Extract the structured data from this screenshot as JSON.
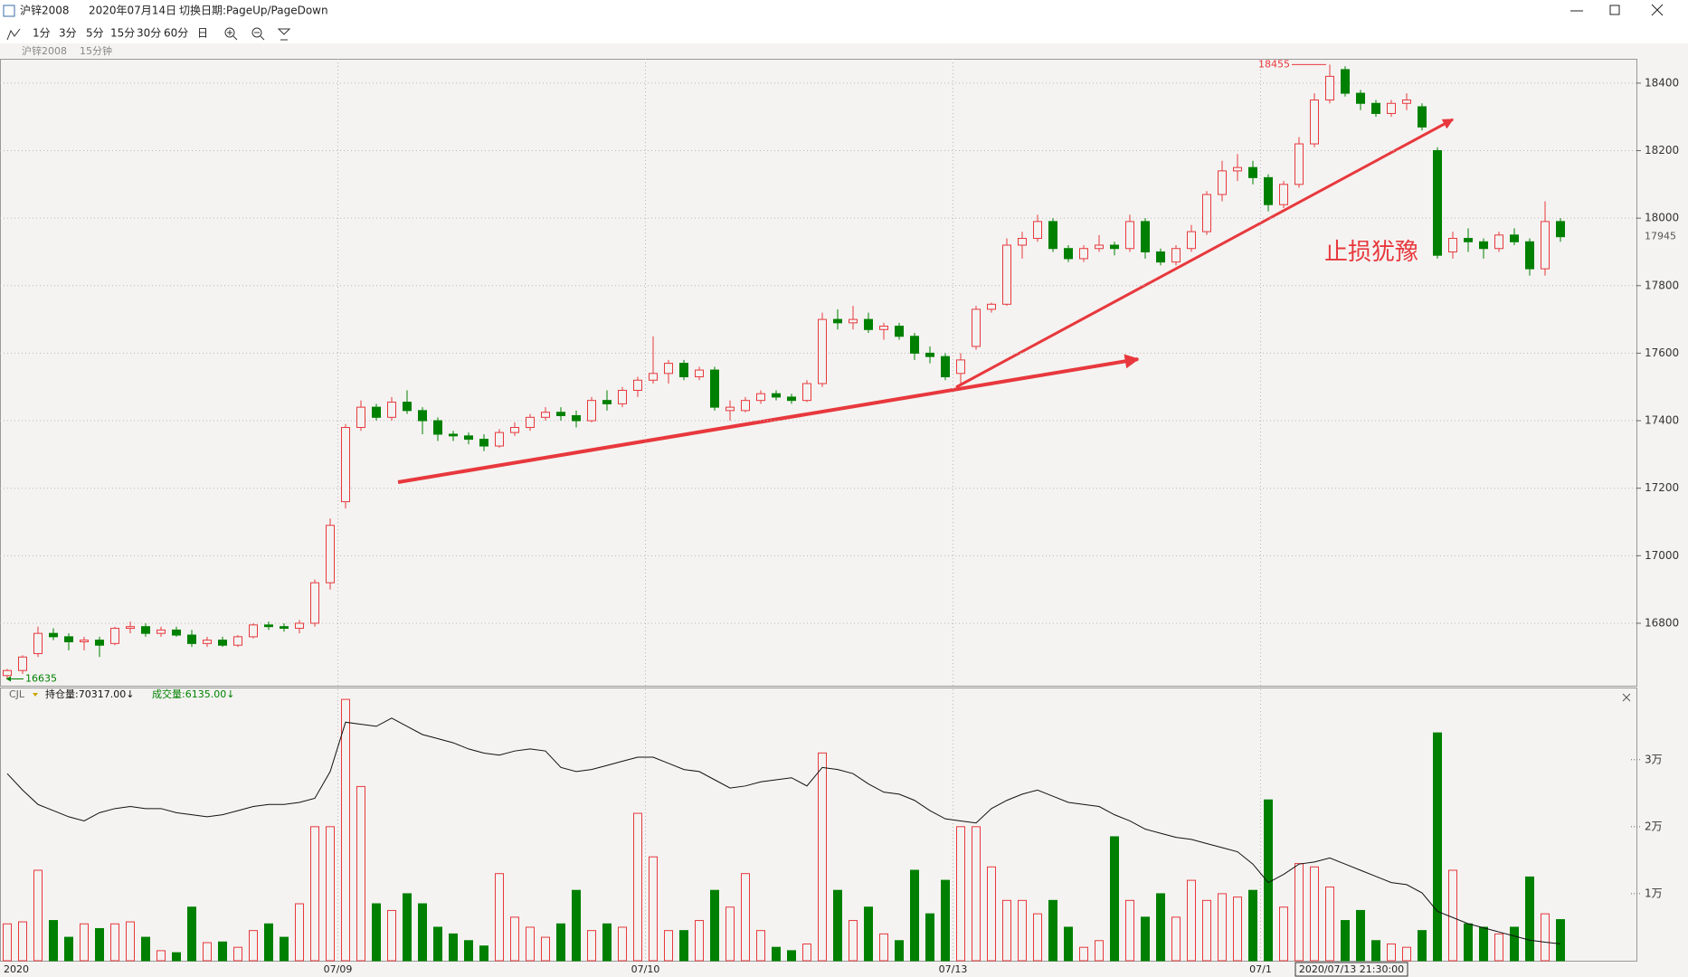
{
  "window": {
    "title": "沪锌2008",
    "date": "2020年07月14日",
    "hint": "切换日期:PageUp/PageDown",
    "periods": [
      "1分",
      "3分",
      "5分",
      "15分",
      "30分",
      "60分",
      "日"
    ]
  },
  "chart_data": {
    "type": "candlestick",
    "subtitle": "沪锌2008",
    "period": "15分钟",
    "categories": [
      "2020",
      null,
      null,
      null,
      null,
      null,
      null,
      null,
      null,
      null,
      null,
      null,
      null,
      null,
      null,
      null,
      null,
      null,
      null,
      null,
      null,
      null,
      "07/09",
      null,
      null,
      null,
      null,
      null,
      null,
      null,
      null,
      null,
      null,
      null,
      null,
      null,
      null,
      null,
      null,
      null,
      null,
      null,
      "07/10",
      null,
      null,
      null,
      null,
      null,
      null,
      null,
      null,
      null,
      null,
      null,
      null,
      null,
      null,
      null,
      null,
      null,
      null,
      null,
      "07/13",
      null,
      null,
      null,
      null,
      null,
      null,
      null,
      null,
      null,
      null,
      null,
      null,
      null,
      null,
      null,
      null,
      null,
      null,
      null,
      "07/1",
      null,
      null,
      null,
      null,
      null,
      null,
      null,
      null,
      null,
      null,
      null,
      null,
      null,
      null,
      null,
      null,
      null,
      null,
      null
    ],
    "ohlc": [
      [
        16645,
        16665,
        16635,
        16660
      ],
      [
        16660,
        16705,
        16650,
        16700
      ],
      [
        16710,
        16790,
        16700,
        16770
      ],
      [
        16770,
        16785,
        16750,
        16760
      ],
      [
        16760,
        16770,
        16720,
        16745
      ],
      [
        16745,
        16760,
        16720,
        16750
      ],
      [
        16750,
        16760,
        16700,
        16735
      ],
      [
        16740,
        16790,
        16735,
        16785
      ],
      [
        16785,
        16805,
        16770,
        16790
      ],
      [
        16790,
        16800,
        16760,
        16770
      ],
      [
        16770,
        16790,
        16760,
        16780
      ],
      [
        16780,
        16790,
        16760,
        16765
      ],
      [
        16765,
        16780,
        16730,
        16740
      ],
      [
        16740,
        16760,
        16730,
        16750
      ],
      [
        16750,
        16760,
        16730,
        16735
      ],
      [
        16735,
        16765,
        16730,
        16760
      ],
      [
        16760,
        16800,
        16755,
        16795
      ],
      [
        16795,
        16805,
        16780,
        16790
      ],
      [
        16790,
        16800,
        16775,
        16785
      ],
      [
        16785,
        16810,
        16770,
        16800
      ],
      [
        16800,
        16930,
        16790,
        16920
      ],
      [
        16920,
        17110,
        16900,
        17090
      ],
      [
        17160,
        17390,
        17140,
        17380
      ],
      [
        17380,
        17460,
        17370,
        17440
      ],
      [
        17440,
        17450,
        17400,
        17410
      ],
      [
        17410,
        17470,
        17400,
        17455
      ],
      [
        17455,
        17490,
        17420,
        17430
      ],
      [
        17430,
        17440,
        17360,
        17400
      ],
      [
        17400,
        17410,
        17340,
        17360
      ],
      [
        17360,
        17370,
        17340,
        17355
      ],
      [
        17355,
        17365,
        17330,
        17345
      ],
      [
        17345,
        17360,
        17310,
        17325
      ],
      [
        17325,
        17375,
        17320,
        17365
      ],
      [
        17365,
        17395,
        17355,
        17380
      ],
      [
        17380,
        17420,
        17370,
        17410
      ],
      [
        17410,
        17440,
        17400,
        17425
      ],
      [
        17425,
        17440,
        17400,
        17415
      ],
      [
        17415,
        17430,
        17380,
        17400
      ],
      [
        17400,
        17470,
        17395,
        17460
      ],
      [
        17460,
        17490,
        17430,
        17450
      ],
      [
        17450,
        17500,
        17440,
        17490
      ],
      [
        17490,
        17530,
        17470,
        17520
      ],
      [
        17520,
        17650,
        17510,
        17540
      ],
      [
        17540,
        17580,
        17510,
        17570
      ],
      [
        17570,
        17580,
        17520,
        17530
      ],
      [
        17530,
        17560,
        17520,
        17550
      ],
      [
        17550,
        17560,
        17430,
        17440
      ],
      [
        17430,
        17460,
        17400,
        17440
      ],
      [
        17430,
        17470,
        17425,
        17460
      ],
      [
        17460,
        17490,
        17450,
        17480
      ],
      [
        17480,
        17490,
        17460,
        17470
      ],
      [
        17470,
        17480,
        17450,
        17460
      ],
      [
        17460,
        17520,
        17455,
        17510
      ],
      [
        17510,
        17720,
        17500,
        17700
      ],
      [
        17700,
        17730,
        17670,
        17690
      ],
      [
        17690,
        17740,
        17670,
        17700
      ],
      [
        17700,
        17720,
        17660,
        17670
      ],
      [
        17670,
        17690,
        17640,
        17680
      ],
      [
        17680,
        17690,
        17640,
        17650
      ],
      [
        17650,
        17660,
        17580,
        17600
      ],
      [
        17600,
        17620,
        17570,
        17590
      ],
      [
        17590,
        17600,
        17520,
        17530
      ],
      [
        17540,
        17600,
        17510,
        17580
      ],
      [
        17620,
        17740,
        17610,
        17730
      ],
      [
        17730,
        17750,
        17720,
        17745
      ],
      [
        17745,
        17940,
        17740,
        17920
      ],
      [
        17920,
        17960,
        17880,
        17940
      ],
      [
        17940,
        18010,
        17930,
        17990
      ],
      [
        17990,
        18000,
        17900,
        17910
      ],
      [
        17910,
        17920,
        17870,
        17880
      ],
      [
        17880,
        17920,
        17870,
        17910
      ],
      [
        17910,
        17950,
        17900,
        17920
      ],
      [
        17920,
        17930,
        17890,
        17910
      ],
      [
        17910,
        18010,
        17900,
        17990
      ],
      [
        17990,
        18000,
        17880,
        17900
      ],
      [
        17900,
        17910,
        17860,
        17870
      ],
      [
        17870,
        17920,
        17860,
        17910
      ],
      [
        17910,
        17980,
        17900,
        17960
      ],
      [
        17960,
        18080,
        17950,
        18070
      ],
      [
        18070,
        18170,
        18050,
        18140
      ],
      [
        18140,
        18190,
        18110,
        18150
      ],
      [
        18150,
        18170,
        18100,
        18120
      ],
      [
        18120,
        18130,
        18020,
        18040
      ],
      [
        18040,
        18110,
        18030,
        18100
      ],
      [
        18100,
        18240,
        18090,
        18220
      ],
      [
        18220,
        18370,
        18210,
        18350
      ],
      [
        18350,
        18455,
        18340,
        18420
      ],
      [
        18440,
        18450,
        18360,
        18370
      ],
      [
        18370,
        18380,
        18320,
        18340
      ],
      [
        18340,
        18350,
        18300,
        18310
      ],
      [
        18310,
        18350,
        18300,
        18340
      ],
      [
        18340,
        18370,
        18320,
        18350
      ],
      [
        18330,
        18340,
        18260,
        18270
      ],
      [
        18200,
        18210,
        17880,
        17890
      ],
      [
        17900,
        17960,
        17880,
        17940
      ],
      [
        17940,
        17970,
        17900,
        17930
      ],
      [
        17930,
        17940,
        17880,
        17910
      ],
      [
        17910,
        17960,
        17900,
        17950
      ],
      [
        17950,
        17970,
        17920,
        17930
      ],
      [
        17930,
        17940,
        17830,
        17850
      ],
      [
        17850,
        18050,
        17830,
        17990
      ],
      [
        17990,
        18000,
        17930,
        17945
      ]
    ],
    "up_color": "#e8383d",
    "down_color": "#008000",
    "ylim": [
      16615,
      18472
    ],
    "yticks": [
      16800,
      17000,
      17200,
      17400,
      17600,
      17800,
      18000,
      18200,
      18400
    ],
    "grid": true,
    "high_label": 18455,
    "low_label": 16635,
    "last_price": 17945,
    "annotation": "止损犹豫",
    "crosshair_label": "2020/07/13 21:30:00",
    "volume_panel": {
      "name": "CJL",
      "oi_label": "持仓量:70317.00↓",
      "volume_label": "成交量:6135.00↓",
      "volume": [
        5500,
        5800,
        13500,
        6000,
        3500,
        5500,
        4800,
        5500,
        5800,
        3500,
        1500,
        1200,
        8000,
        2700,
        2800,
        2000,
        4500,
        5500,
        3500,
        8500,
        20000,
        20000,
        39000,
        26000,
        8500,
        7500,
        10000,
        8500,
        5000,
        4000,
        3000,
        2200,
        13000,
        6500,
        5000,
        3500,
        5500,
        10500,
        4500,
        5500,
        5000,
        22000,
        15500,
        4500,
        4500,
        6000,
        10500,
        8000,
        13000,
        4500,
        2000,
        1500,
        2500,
        31000,
        10500,
        6000,
        8000,
        4000,
        3000,
        13500,
        7000,
        12000,
        20000,
        20000,
        14000,
        9000,
        9000,
        7000,
        9000,
        5000,
        2000,
        3000,
        18500,
        9000,
        6500,
        10000,
        6500,
        12000,
        9000,
        10000,
        9500,
        10500,
        24000,
        8000,
        14500,
        14000,
        11000,
        6000,
        7500,
        3000,
        2500,
        2000,
        4500,
        34000,
        13500,
        5500,
        5000,
        4000,
        5000,
        12500,
        7000,
        6135
      ],
      "oi": [
        78600,
        77800,
        77100,
        76800,
        76500,
        76300,
        76700,
        76900,
        77000,
        76900,
        76900,
        76700,
        76600,
        76500,
        76600,
        76800,
        77000,
        77100,
        77100,
        77200,
        77400,
        78700,
        81100,
        81000,
        80900,
        81300,
        80900,
        80500,
        80300,
        80100,
        79800,
        79600,
        79500,
        79700,
        79800,
        79700,
        78900,
        78700,
        78800,
        79000,
        79200,
        79400,
        79400,
        79100,
        78800,
        78700,
        78300,
        77900,
        78000,
        78200,
        78300,
        78400,
        78000,
        78900,
        78800,
        78600,
        78100,
        77700,
        77600,
        77300,
        76800,
        76400,
        76300,
        76200,
        76900,
        77300,
        77600,
        77800,
        77500,
        77200,
        77100,
        77000,
        76600,
        76300,
        75900,
        75700,
        75500,
        75400,
        75200,
        75000,
        74800,
        74200,
        73300,
        73700,
        74200,
        74300,
        74500,
        74200,
        73900,
        73600,
        73300,
        73200,
        72800,
        71900,
        71600,
        71300,
        71100,
        70900,
        70700,
        70500,
        70400,
        70317
      ],
      "ylim": [
        0,
        40500
      ],
      "yticks": [
        {
          "value": 10000,
          "label": "1万"
        },
        {
          "value": 20000,
          "label": "2万"
        },
        {
          "value": 30000,
          "label": "3万"
        }
      ],
      "y2lim": [
        69500,
        82700
      ],
      "oi_color": "#111111"
    }
  }
}
